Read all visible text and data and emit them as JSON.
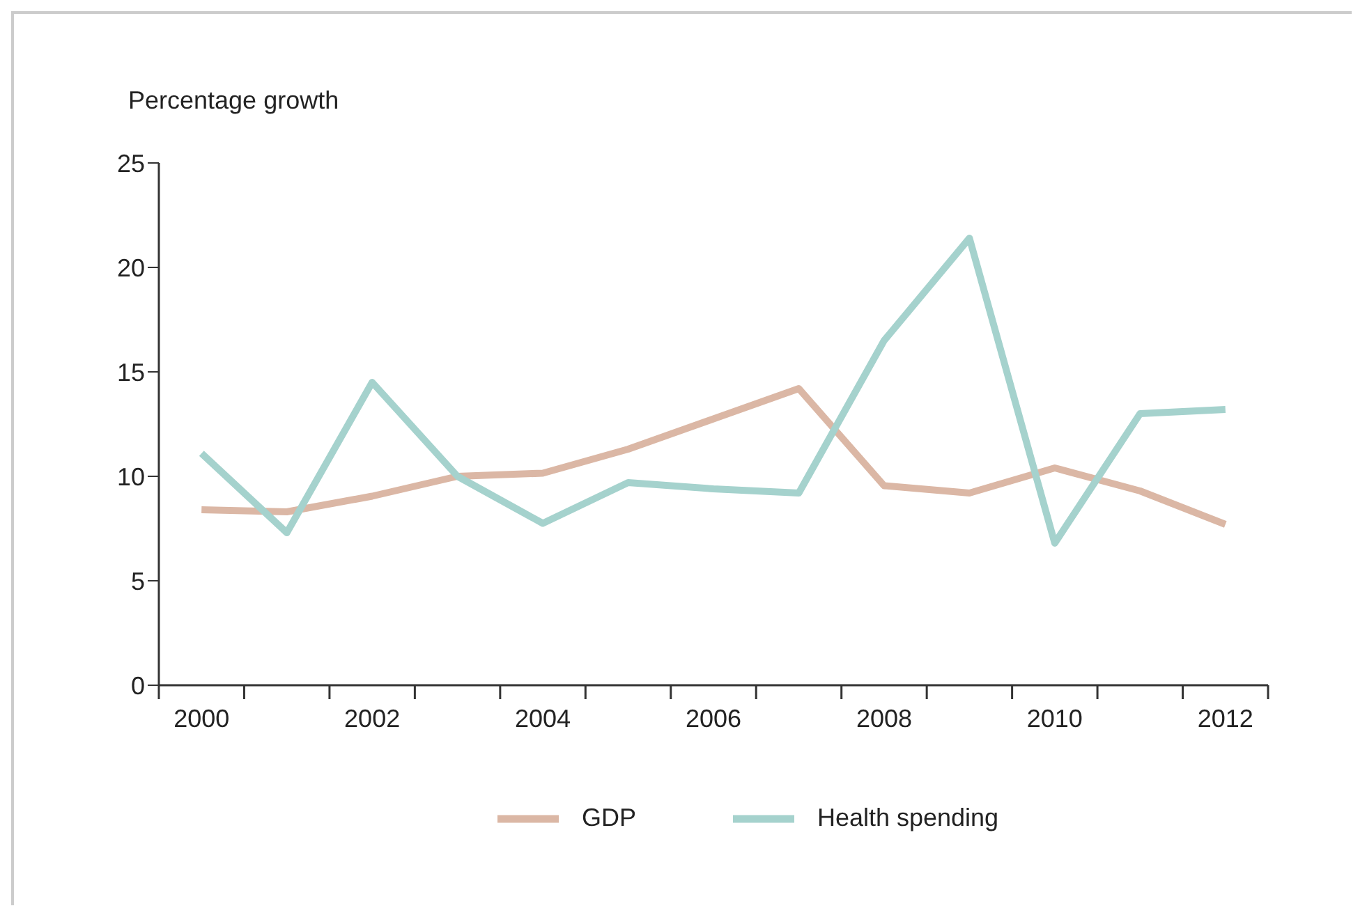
{
  "chart_data": {
    "type": "line",
    "ylabel": "Percentage growth",
    "x": [
      2000,
      2001,
      2002,
      2003,
      2004,
      2005,
      2006,
      2007,
      2008,
      2009,
      2010,
      2011,
      2012
    ],
    "xlim": [
      1999.5,
      2012.5
    ],
    "xticks": [
      {
        "value": 1999.5,
        "label": null
      },
      2000,
      {
        "value": 2000.5,
        "label": null
      },
      {
        "value": 2001.5,
        "label": null
      },
      2002,
      {
        "value": 2002.5,
        "label": null
      },
      {
        "value": 2003.5,
        "label": null
      },
      2004,
      {
        "value": 2004.5,
        "label": null
      },
      {
        "value": 2005.5,
        "label": null
      },
      2006,
      {
        "value": 2006.5,
        "label": null
      },
      {
        "value": 2007.5,
        "label": null
      },
      2008,
      {
        "value": 2008.5,
        "label": null
      },
      {
        "value": 2009.5,
        "label": null
      },
      2010,
      {
        "value": 2010.5,
        "label": null
      },
      {
        "value": 2011.5,
        "label": null
      },
      2012,
      {
        "value": 2012.5,
        "label": null
      }
    ],
    "ylim": [
      0,
      25
    ],
    "yticks": [
      0,
      5,
      10,
      15,
      20,
      25
    ],
    "series": [
      {
        "name": "GDP",
        "color": "#dbb7a5",
        "values": [
          8.4,
          8.3,
          9.05,
          10.0,
          10.15,
          11.3,
          12.75,
          14.2,
          9.55,
          9.2,
          10.4,
          9.3,
          7.7
        ]
      },
      {
        "name": "Health spending",
        "color": "#a5d2cd",
        "values": [
          11.1,
          7.3,
          14.5,
          10.0,
          7.75,
          9.7,
          9.4,
          9.2,
          16.5,
          21.4,
          6.8,
          13.0,
          13.2
        ]
      }
    ],
    "grid": false,
    "legend": "bottom",
    "marker": "none",
    "line_style": "solid"
  }
}
